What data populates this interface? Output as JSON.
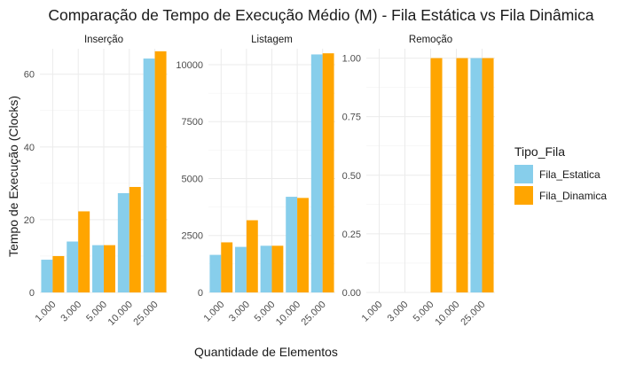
{
  "chart_data": {
    "type": "bar",
    "title": "Comparação de Tempo de Execução Médio (M) - Fila Estática vs Fila Dinâmica",
    "xlabel": "Quantidade de Elementos",
    "ylabel": "Tempo de Execução (Clocks)",
    "legend": {
      "title": "Tipo_Fila",
      "position": "right",
      "entries": [
        {
          "name": "Fila_Estatica",
          "color": "#87CEEB"
        },
        {
          "name": "Fila_Dinamica",
          "color": "#FFA500"
        }
      ]
    },
    "grid": true,
    "categories": [
      "1.000",
      "3.000",
      "5.000",
      "10.000",
      "25.000"
    ],
    "panels": [
      {
        "title": "Inserção",
        "ylim": [
          0,
          67
        ],
        "yticks": [
          0,
          20,
          40,
          60
        ],
        "ytick_labels": [
          "0",
          "20",
          "40",
          "60"
        ],
        "series": [
          {
            "name": "Fila_Estatica",
            "values": [
              9,
              14,
              13,
              27.3,
              64.3
            ]
          },
          {
            "name": "Fila_Dinamica",
            "values": [
              10,
              22.3,
              13,
              29,
              66.3
            ]
          }
        ]
      },
      {
        "title": "Listagem",
        "ylim": [
          0,
          10700
        ],
        "yticks": [
          0,
          2500,
          5000,
          7500,
          10000
        ],
        "ytick_labels": [
          "0",
          "2500",
          "5000",
          "7500",
          "10000"
        ],
        "series": [
          {
            "name": "Fila_Estatica",
            "values": [
              1650,
              2000,
              2050,
              4200,
              10450
            ]
          },
          {
            "name": "Fila_Dinamica",
            "values": [
              2200,
              3170,
              2050,
              4150,
              10500
            ]
          }
        ]
      },
      {
        "title": "Remoção",
        "ylim": [
          0,
          1.04
        ],
        "yticks": [
          0,
          0.25,
          0.5,
          0.75,
          1.0
        ],
        "ytick_labels": [
          "0.00",
          "0.25",
          "0.50",
          "0.75",
          "1.00"
        ],
        "series": [
          {
            "name": "Fila_Estatica",
            "values": [
              0,
              0,
              0,
              0,
              1
            ]
          },
          {
            "name": "Fila_Dinamica",
            "values": [
              0,
              0,
              1,
              1,
              1
            ]
          }
        ]
      }
    ]
  }
}
